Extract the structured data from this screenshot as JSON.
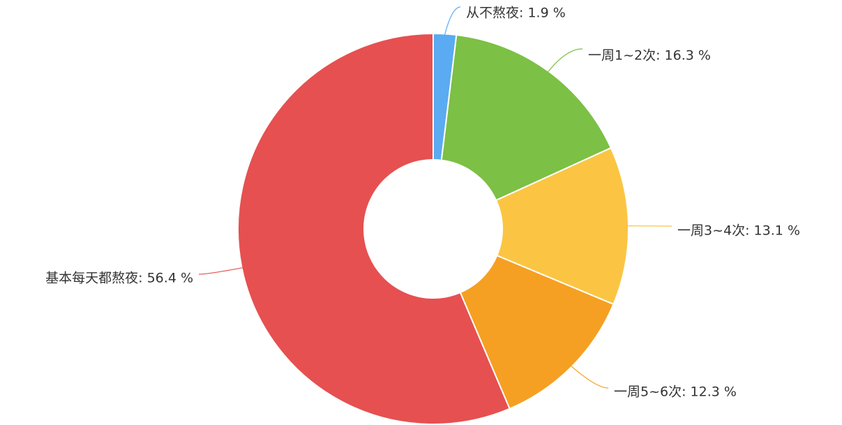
{
  "chart_data": {
    "type": "pie",
    "donut": true,
    "start_angle": "top",
    "direction": "clockwise",
    "label_format": "{name}: {value} %",
    "slices": [
      {
        "name": "从不熬夜",
        "value": 1.9,
        "color": "#5aabf1"
      },
      {
        "name": "一周1~2次",
        "value": 16.3,
        "color": "#7cc045"
      },
      {
        "name": "一周3~4次",
        "value": 13.1,
        "color": "#fbc543"
      },
      {
        "name": "一周5~6次",
        "value": 12.3,
        "color": "#f5a022"
      },
      {
        "name": "基本每天都熬夜",
        "value": 56.4,
        "color": "#e65050"
      }
    ]
  }
}
